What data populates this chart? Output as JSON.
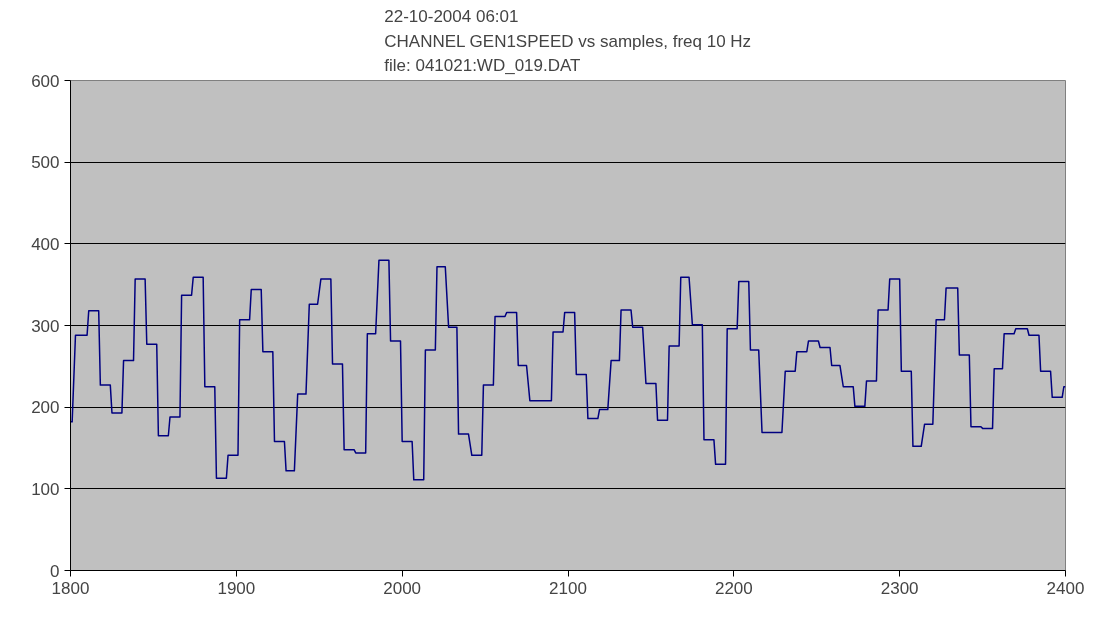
{
  "chart_data": {
    "type": "line",
    "title": "22-10-2004 06:01\nCHANNEL GEN1SPEED vs samples, freq 10 Hz\nfile: 041021:WD_019.DAT",
    "xlim": [
      1800,
      2400
    ],
    "xticks": [
      1800,
      1900,
      2000,
      2100,
      2200,
      2300,
      2400
    ],
    "ylim": [
      0,
      600
    ],
    "yticks": [
      0,
      100,
      200,
      300,
      400,
      500,
      600
    ],
    "grid": "y",
    "line_style": "solid",
    "series": [
      {
        "color": "#000080",
        "x": [
          1800,
          1801,
          1803,
          1810,
          1811,
          1817,
          1818,
          1824,
          1825,
          1831,
          1832,
          1838,
          1839,
          1845,
          1846,
          1852,
          1853,
          1859,
          1860,
          1866,
          1867,
          1873,
          1874,
          1880,
          1881,
          1887,
          1888,
          1894,
          1895,
          1901,
          1902,
          1908,
          1909,
          1915,
          1916,
          1922,
          1923,
          1929,
          1930,
          1935,
          1937,
          1942,
          1944,
          1949,
          1951,
          1957,
          1958,
          1964,
          1965,
          1971,
          1972,
          1978,
          1979,
          1984,
          1986,
          1992,
          1993,
          1999,
          2000,
          2006,
          2007,
          2013,
          2014,
          2020,
          2021,
          2026,
          2028,
          2033,
          2034,
          2040,
          2042,
          2048,
          2049,
          2055,
          2056,
          2062,
          2063,
          2069,
          2070,
          2075,
          2077,
          2090,
          2091,
          2097,
          2098,
          2104,
          2105,
          2111,
          2112,
          2118,
          2119,
          2124,
          2126,
          2131,
          2132,
          2138,
          2139,
          2145,
          2147,
          2153,
          2154,
          2160,
          2161,
          2167,
          2168,
          2173,
          2175,
          2181,
          2182,
          2188,
          2189,
          2195,
          2196,
          2202,
          2203,
          2209,
          2210,
          2215,
          2217,
          2229,
          2231,
          2237,
          2238,
          2244,
          2245,
          2251,
          2252,
          2258,
          2259,
          2264,
          2266,
          2272,
          2273,
          2279,
          2280,
          2286,
          2287,
          2293,
          2294,
          2300,
          2301,
          2307,
          2308,
          2313,
          2315,
          2320,
          2322,
          2327,
          2328,
          2335,
          2336,
          2342,
          2343,
          2349,
          2350,
          2356,
          2357,
          2362,
          2363,
          2369,
          2370,
          2377,
          2378,
          2384,
          2385,
          2391,
          2392,
          2398,
          2399,
          2400
        ],
        "values": [
          182,
          182,
          288,
          288,
          318,
          318,
          227,
          227,
          193,
          193,
          257,
          257,
          357,
          357,
          277,
          277,
          165,
          165,
          188,
          188,
          337,
          337,
          359,
          359,
          225,
          225,
          113,
          113,
          141,
          141,
          307,
          307,
          344,
          344,
          268,
          268,
          158,
          158,
          122,
          122,
          216,
          216,
          326,
          326,
          357,
          357,
          253,
          253,
          148,
          148,
          144,
          144,
          290,
          290,
          380,
          380,
          281,
          281,
          158,
          158,
          111,
          111,
          270,
          270,
          372,
          372,
          298,
          298,
          167,
          167,
          141,
          141,
          227,
          227,
          311,
          311,
          316,
          316,
          251,
          251,
          208,
          208,
          292,
          292,
          316,
          316,
          240,
          240,
          186,
          186,
          197,
          197,
          257,
          257,
          319,
          319,
          298,
          298,
          229,
          229,
          184,
          184,
          275,
          275,
          359,
          359,
          301,
          301,
          160,
          160,
          130,
          130,
          296,
          296,
          354,
          354,
          270,
          270,
          169,
          169,
          244,
          244,
          268,
          268,
          281,
          281,
          273,
          273,
          251,
          251,
          225,
          225,
          201,
          201,
          232,
          232,
          319,
          319,
          357,
          357,
          244,
          244,
          152,
          152,
          179,
          179,
          307,
          307,
          346,
          346,
          264,
          264,
          176,
          176,
          174,
          174,
          247,
          247,
          290,
          290,
          296,
          296,
          288,
          288,
          244,
          244,
          212,
          212,
          225,
          225
        ]
      }
    ]
  }
}
